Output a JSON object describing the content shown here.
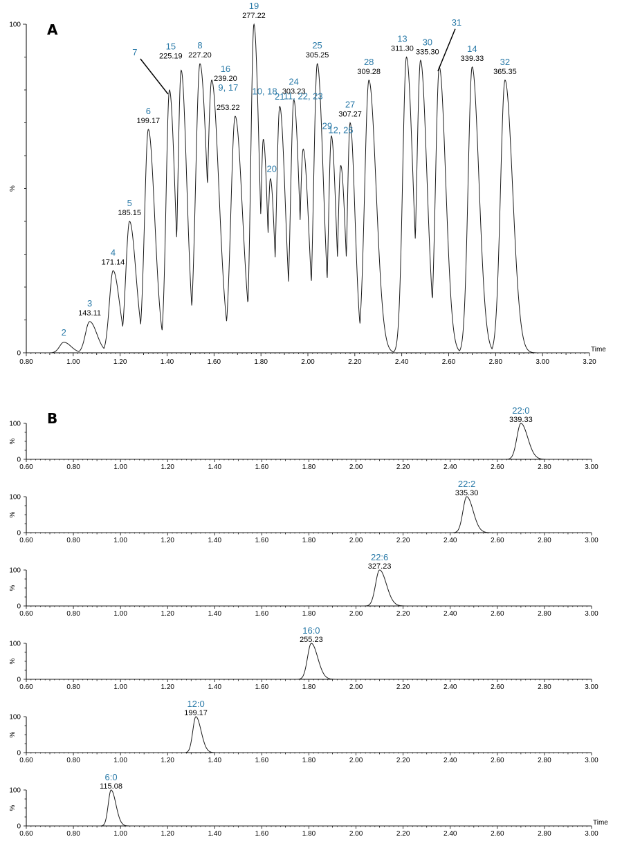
{
  "chart_data": [
    {
      "type": "line",
      "panel": "A",
      "xlabel": "Time",
      "ylabel": "%",
      "xlim": [
        0.8,
        3.2
      ],
      "ylim": [
        0,
        100
      ],
      "xticks": [
        "0.80",
        "1.00",
        "1.20",
        "1.40",
        "1.60",
        "1.80",
        "2.00",
        "2.20",
        "2.40",
        "2.60",
        "2.80",
        "3.00",
        "3.20"
      ],
      "yticks": [
        "0",
        "%",
        "100"
      ],
      "series": [
        {
          "peaks": [
            {
              "id": "2",
              "mz": "",
              "rt": 0.96,
              "h": 3.2,
              "w": 0.018
            },
            {
              "id": "3",
              "mz": "143.11",
              "rt": 1.07,
              "h": 9.5,
              "w": 0.018
            },
            {
              "id": "4",
              "mz": "171.14",
              "rt": 1.17,
              "h": 25,
              "w": 0.016
            },
            {
              "id": "5",
              "mz": "185.15",
              "rt": 1.24,
              "h": 40,
              "w": 0.016
            },
            {
              "id": "6",
              "mz": "199.17",
              "rt": 1.32,
              "h": 68,
              "w": 0.016
            },
            {
              "id": "7",
              "mz": "",
              "rt": 1.41,
              "h": 80,
              "w": 0.014
            },
            {
              "id": "15",
              "mz": "225.19",
              "rt": 1.46,
              "h": 86,
              "w": 0.014
            },
            {
              "id": "8",
              "mz": "227.20",
              "rt": 1.54,
              "h": 88,
              "w": 0.018
            },
            {
              "id": "16",
              "mz": "239.20",
              "rt": 1.59,
              "h": 83,
              "w": 0.018
            },
            {
              "id": "9, 17",
              "mz": "253.22",
              "rt": 1.69,
              "h": 72,
              "w": 0.018
            },
            {
              "id": "19",
              "mz": "277.22",
              "rt": 1.77,
              "h": 100,
              "w": 0.013
            },
            {
              "id": "10, 18",
              "mz": "",
              "rt": 1.81,
              "h": 65,
              "w": 0.011
            },
            {
              "id": "20",
              "mz": "",
              "rt": 1.84,
              "h": 53,
              "w": 0.011
            },
            {
              "id": "21",
              "mz": "",
              "rt": 1.88,
              "h": 75,
              "w": 0.014
            },
            {
              "id": "24",
              "mz": "303.23",
              "rt": 1.94,
              "h": 77,
              "w": 0.014
            },
            {
              "id": "11, 22, 23",
              "mz": "",
              "rt": 1.98,
              "h": 62,
              "w": 0.014
            },
            {
              "id": "25",
              "mz": "305.25",
              "rt": 2.04,
              "h": 88,
              "w": 0.015
            },
            {
              "id": "29",
              "mz": "",
              "rt": 2.1,
              "h": 66,
              "w": 0.012
            },
            {
              "id": "12, 26",
              "mz": "",
              "rt": 2.14,
              "h": 57,
              "w": 0.012
            },
            {
              "id": "27",
              "mz": "307.27",
              "rt": 2.18,
              "h": 70,
              "w": 0.012
            },
            {
              "id": "28",
              "mz": "309.28",
              "rt": 2.26,
              "h": 83,
              "w": 0.018
            },
            {
              "id": "13",
              "mz": "311.30",
              "rt": 2.42,
              "h": 90,
              "w": 0.016
            },
            {
              "id": "30",
              "mz": "335.30",
              "rt": 2.48,
              "h": 89,
              "w": 0.016
            },
            {
              "id": "31",
              "mz": "",
              "rt": 2.56,
              "h": 87,
              "w": 0.016
            },
            {
              "id": "14",
              "mz": "339.33",
              "rt": 2.7,
              "h": 87,
              "w": 0.017
            },
            {
              "id": "32",
              "mz": "365.35",
              "rt": 2.84,
              "h": 83,
              "w": 0.019
            }
          ]
        }
      ]
    },
    {
      "type": "line",
      "panel": "B",
      "xlabel": "Time",
      "ylabel": "%",
      "xlim": [
        0.6,
        3.0
      ],
      "ylim": [
        0,
        100
      ],
      "xticks": [
        "0.60",
        "0.80",
        "1.00",
        "1.20",
        "1.40",
        "1.60",
        "1.80",
        "2.00",
        "2.20",
        "2.40",
        "2.60",
        "2.80",
        "3.00"
      ],
      "yticks": [
        "0",
        "%",
        "100"
      ],
      "series": [
        {
          "name": "22:0",
          "mz": "339.33",
          "rt": 2.7,
          "h": 100,
          "w": 0.017
        },
        {
          "name": "22:2",
          "mz": "335.30",
          "rt": 2.47,
          "h": 100,
          "w": 0.016
        },
        {
          "name": "22:6",
          "mz": "327.23",
          "rt": 2.1,
          "h": 100,
          "w": 0.017
        },
        {
          "name": "16:0",
          "mz": "255.23",
          "rt": 1.81,
          "h": 100,
          "w": 0.016
        },
        {
          "name": "12:0",
          "mz": "199.17",
          "rt": 1.32,
          "h": 100,
          "w": 0.013
        },
        {
          "name": "6:0",
          "mz": "115.08",
          "rt": 0.96,
          "h": 100,
          "w": 0.012
        }
      ]
    }
  ],
  "panels": {
    "a_label": "A",
    "b_label": "B"
  }
}
